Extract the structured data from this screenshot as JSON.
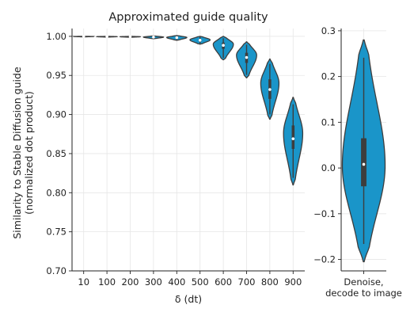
{
  "chart_data": [
    {
      "type": "violin",
      "title": "Approximated guide quality",
      "xlabel": "δ (dt)",
      "ylabel": [
        "Similarity to Stable Diffusion guide",
        "(normalized dot product)"
      ],
      "ylim": [
        0.7,
        1.01
      ],
      "yticks": [
        "0.70",
        "0.75",
        "0.80",
        "0.85",
        "0.90",
        "0.95",
        "1.00"
      ],
      "grid": true,
      "color": "#1a95c9",
      "categories": [
        "10",
        "100",
        "200",
        "300",
        "400",
        "500",
        "600",
        "700",
        "800",
        "900"
      ],
      "series": [
        {
          "category": "10",
          "min": 0.9993,
          "max": 1.0,
          "q1": 0.9996,
          "median": 0.9998,
          "q3": 0.9999,
          "mode": 0.9998,
          "width": 0.42
        },
        {
          "category": "100",
          "min": 0.999,
          "max": 1.0,
          "q1": 0.9994,
          "median": 0.9996,
          "q3": 0.9998,
          "mode": 0.9996,
          "width": 0.42
        },
        {
          "category": "200",
          "min": 0.9988,
          "max": 1.0,
          "q1": 0.9993,
          "median": 0.9995,
          "q3": 0.9997,
          "mode": 0.9995,
          "width": 0.42
        },
        {
          "category": "300",
          "min": 0.997,
          "max": 1.0005,
          "q1": 0.9982,
          "median": 0.999,
          "q3": 0.9997,
          "mode": 0.999,
          "width": 0.42
        },
        {
          "category": "400",
          "min": 0.995,
          "max": 1.001,
          "q1": 0.9972,
          "median": 0.9983,
          "q3": 0.9993,
          "mode": 0.9985,
          "width": 0.42
        },
        {
          "category": "500",
          "min": 0.99,
          "max": 1.0,
          "q1": 0.9935,
          "median": 0.995,
          "q3": 0.9965,
          "mode": 0.9955,
          "width": 0.42
        },
        {
          "category": "600",
          "min": 0.97,
          "max": 1.0,
          "q1": 0.984,
          "median": 0.9885,
          "q3": 0.992,
          "mode": 0.99,
          "width": 0.42
        },
        {
          "category": "700",
          "min": 0.947,
          "max": 0.993,
          "q1": 0.966,
          "median": 0.973,
          "q3": 0.979,
          "mode": 0.976,
          "width": 0.42
        },
        {
          "category": "800",
          "min": 0.894,
          "max": 0.971,
          "q1": 0.92,
          "median": 0.932,
          "q3": 0.945,
          "mode": 0.94,
          "width": 0.38
        },
        {
          "category": "900",
          "min": 0.81,
          "max": 0.922,
          "q1": 0.856,
          "median": 0.869,
          "q3": 0.886,
          "mode": 0.876,
          "width": 0.4
        }
      ]
    },
    {
      "type": "violin",
      "title": "",
      "xlabel": "",
      "categories": [
        "Denoise,\ndecode to image"
      ],
      "ylim": [
        -0.225,
        0.305
      ],
      "yticks": [
        "−0.2",
        "−0.1",
        "0.0",
        "0.1",
        "0.2",
        "0.3"
      ],
      "grid": true,
      "color": "#1a95c9",
      "series": [
        {
          "category": "Denoise,\ndecode to image",
          "min": -0.205,
          "max": 0.28,
          "q1": -0.04,
          "median": 0.008,
          "q3": 0.065,
          "mode": 0.005,
          "width": 0.46
        }
      ]
    }
  ]
}
